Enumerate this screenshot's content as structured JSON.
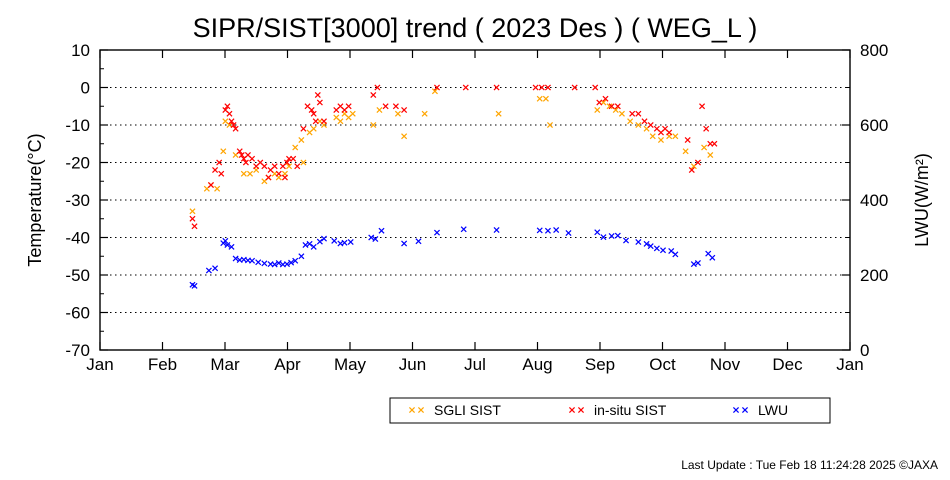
{
  "chart_data": {
    "type": "scatter",
    "title": "SIPR/SIST[3000] trend ( 2023 Des ) ( WEG_L )",
    "ylabel": "Temperature(°C)",
    "y2label": "LWU(W/m²)",
    "x_ticks": [
      "Jan",
      "Feb",
      "Mar",
      "Apr",
      "May",
      "Jun",
      "Jul",
      "Aug",
      "Sep",
      "Oct",
      "Nov",
      "Dec",
      "Jan"
    ],
    "ylim": [
      -70,
      10
    ],
    "y_ticks": [
      10,
      0,
      -10,
      -20,
      -30,
      -40,
      -50,
      -60,
      -70
    ],
    "y2lim": [
      0,
      800
    ],
    "y2_ticks": [
      800,
      600,
      400,
      200,
      0
    ],
    "grid": "horizontal dotted",
    "legend_position": "bottom",
    "series": [
      {
        "name": "SGLI SIST",
        "color": "#ffa500",
        "axis": "left",
        "points": [
          [
            "2023-02-15",
            -33
          ],
          [
            "2023-02-22",
            -27
          ],
          [
            "2023-02-24",
            -26
          ],
          [
            "2023-02-27",
            -27
          ],
          [
            "2023-03-02",
            -17
          ],
          [
            "2023-03-03",
            -9
          ],
          [
            "2023-03-05",
            -10
          ],
          [
            "2023-03-08",
            -18
          ],
          [
            "2023-03-12",
            -23
          ],
          [
            "2023-03-15",
            -23
          ],
          [
            "2023-03-18",
            -22
          ],
          [
            "2023-03-22",
            -25
          ],
          [
            "2023-03-24",
            -24
          ],
          [
            "2023-03-27",
            -23
          ],
          [
            "2023-03-29",
            -24
          ],
          [
            "2023-04-01",
            -23
          ],
          [
            "2023-04-03",
            -21
          ],
          [
            "2023-04-06",
            -16
          ],
          [
            "2023-04-09",
            -14
          ],
          [
            "2023-04-10",
            -20
          ],
          [
            "2023-04-13",
            -12
          ],
          [
            "2023-04-15",
            -11
          ],
          [
            "2023-04-18",
            -9
          ],
          [
            "2023-04-20",
            -10
          ],
          [
            "2023-04-26",
            -8
          ],
          [
            "2023-04-28",
            -9
          ],
          [
            "2023-04-30",
            -7
          ],
          [
            "2023-05-02",
            -8
          ],
          [
            "2023-05-04",
            -7
          ],
          [
            "2023-05-14",
            -10
          ],
          [
            "2023-05-17",
            -6
          ],
          [
            "2023-05-26",
            -7
          ],
          [
            "2023-05-29",
            -13
          ],
          [
            "2023-06-08",
            -7
          ],
          [
            "2023-06-13",
            -1
          ],
          [
            "2023-07-14",
            -7
          ],
          [
            "2023-08-03",
            -3
          ],
          [
            "2023-08-06",
            -3
          ],
          [
            "2023-08-08",
            -10
          ],
          [
            "2023-08-31",
            -6
          ],
          [
            "2023-09-03",
            -4
          ],
          [
            "2023-09-06",
            -5
          ],
          [
            "2023-09-09",
            -6
          ],
          [
            "2023-09-12",
            -7
          ],
          [
            "2023-09-16",
            -9
          ],
          [
            "2023-09-20",
            -10
          ],
          [
            "2023-09-24",
            -11
          ],
          [
            "2023-09-27",
            -13
          ],
          [
            "2023-10-01",
            -14
          ],
          [
            "2023-10-05",
            -13
          ],
          [
            "2023-10-08",
            -13
          ],
          [
            "2023-10-13",
            -17
          ],
          [
            "2023-10-17",
            -21
          ],
          [
            "2023-10-22",
            -16
          ],
          [
            "2023-10-25",
            -18
          ]
        ]
      },
      {
        "name": "in-situ SIST",
        "color": "#ff0000",
        "axis": "left",
        "points": [
          [
            "2023-02-15",
            -35
          ],
          [
            "2023-02-16",
            -37
          ],
          [
            "2023-02-24",
            -26
          ],
          [
            "2023-02-26",
            -22
          ],
          [
            "2023-02-28",
            -20
          ],
          [
            "2023-03-01",
            -23
          ],
          [
            "2023-03-03",
            -6
          ],
          [
            "2023-03-04",
            -5
          ],
          [
            "2023-03-05",
            -7
          ],
          [
            "2023-03-06",
            -9
          ],
          [
            "2023-03-07",
            -10
          ],
          [
            "2023-03-08",
            -11
          ],
          [
            "2023-03-10",
            -17
          ],
          [
            "2023-03-11",
            -18
          ],
          [
            "2023-03-12",
            -19
          ],
          [
            "2023-03-13",
            -20
          ],
          [
            "2023-03-14",
            -18
          ],
          [
            "2023-03-16",
            -19
          ],
          [
            "2023-03-18",
            -21
          ],
          [
            "2023-03-20",
            -20
          ],
          [
            "2023-03-22",
            -21
          ],
          [
            "2023-03-24",
            -24
          ],
          [
            "2023-03-25",
            -22
          ],
          [
            "2023-03-27",
            -21
          ],
          [
            "2023-03-29",
            -23
          ],
          [
            "2023-03-31",
            -21
          ],
          [
            "2023-04-01",
            -24
          ],
          [
            "2023-04-02",
            -20
          ],
          [
            "2023-04-03",
            -19
          ],
          [
            "2023-04-05",
            -19
          ],
          [
            "2023-04-07",
            -21
          ],
          [
            "2023-04-10",
            -11
          ],
          [
            "2023-04-12",
            -5
          ],
          [
            "2023-04-14",
            -6
          ],
          [
            "2023-04-15",
            -7
          ],
          [
            "2023-04-16",
            -9
          ],
          [
            "2023-04-17",
            -2
          ],
          [
            "2023-04-18",
            -4
          ],
          [
            "2023-04-20",
            -9
          ],
          [
            "2023-04-26",
            -6
          ],
          [
            "2023-04-28",
            -5
          ],
          [
            "2023-04-30",
            -6
          ],
          [
            "2023-05-02",
            -5
          ],
          [
            "2023-05-14",
            -2
          ],
          [
            "2023-05-16",
            0
          ],
          [
            "2023-05-20",
            -5
          ],
          [
            "2023-05-25",
            -5
          ],
          [
            "2023-05-29",
            -6
          ],
          [
            "2023-06-14",
            0
          ],
          [
            "2023-06-28",
            0
          ],
          [
            "2023-07-13",
            0
          ],
          [
            "2023-08-01",
            0
          ],
          [
            "2023-08-04",
            0
          ],
          [
            "2023-08-07",
            0
          ],
          [
            "2023-08-20",
            0
          ],
          [
            "2023-08-30",
            0
          ],
          [
            "2023-09-01",
            -4
          ],
          [
            "2023-09-04",
            -3
          ],
          [
            "2023-09-07",
            -5
          ],
          [
            "2023-09-10",
            -5
          ],
          [
            "2023-09-17",
            -7
          ],
          [
            "2023-09-20",
            -7
          ],
          [
            "2023-09-23",
            -9
          ],
          [
            "2023-09-26",
            -10
          ],
          [
            "2023-09-29",
            -11
          ],
          [
            "2023-10-01",
            -12
          ],
          [
            "2023-10-03",
            -11
          ],
          [
            "2023-10-05",
            -12
          ],
          [
            "2023-10-14",
            -14
          ],
          [
            "2023-10-16",
            -22
          ],
          [
            "2023-10-19",
            -20
          ],
          [
            "2023-10-21",
            -5
          ],
          [
            "2023-10-23",
            -11
          ],
          [
            "2023-10-25",
            -15
          ],
          [
            "2023-10-27",
            -15
          ]
        ]
      },
      {
        "name": "LWU",
        "color": "#0000ff",
        "axis": "right",
        "points": [
          [
            "2023-02-15",
            174
          ],
          [
            "2023-02-16",
            171
          ],
          [
            "2023-02-23",
            212
          ],
          [
            "2023-02-26",
            218
          ],
          [
            "2023-03-02",
            285
          ],
          [
            "2023-03-03",
            291
          ],
          [
            "2023-03-04",
            280
          ],
          [
            "2023-03-06",
            275
          ],
          [
            "2023-03-08",
            244
          ],
          [
            "2023-03-10",
            240
          ],
          [
            "2023-03-12",
            241
          ],
          [
            "2023-03-14",
            239
          ],
          [
            "2023-03-16",
            238
          ],
          [
            "2023-03-19",
            234
          ],
          [
            "2023-03-22",
            231
          ],
          [
            "2023-03-25",
            229
          ],
          [
            "2023-03-27",
            228
          ],
          [
            "2023-03-29",
            232
          ],
          [
            "2023-03-31",
            228
          ],
          [
            "2023-04-02",
            229
          ],
          [
            "2023-04-04",
            233
          ],
          [
            "2023-04-06",
            238
          ],
          [
            "2023-04-09",
            250
          ],
          [
            "2023-04-11",
            280
          ],
          [
            "2023-04-13",
            283
          ],
          [
            "2023-04-15",
            275
          ],
          [
            "2023-04-18",
            289
          ],
          [
            "2023-04-20",
            297
          ],
          [
            "2023-04-25",
            291
          ],
          [
            "2023-04-28",
            284
          ],
          [
            "2023-04-30",
            286
          ],
          [
            "2023-05-03",
            288
          ],
          [
            "2023-05-13",
            300
          ],
          [
            "2023-05-15",
            296
          ],
          [
            "2023-05-18",
            318
          ],
          [
            "2023-05-29",
            284
          ],
          [
            "2023-06-05",
            290
          ],
          [
            "2023-06-14",
            313
          ],
          [
            "2023-06-27",
            322
          ],
          [
            "2023-07-13",
            320
          ],
          [
            "2023-08-03",
            319
          ],
          [
            "2023-08-07",
            318
          ],
          [
            "2023-08-11",
            320
          ],
          [
            "2023-08-17",
            312
          ],
          [
            "2023-08-31",
            314
          ],
          [
            "2023-09-03",
            301
          ],
          [
            "2023-09-07",
            304
          ],
          [
            "2023-09-10",
            305
          ],
          [
            "2023-09-14",
            292
          ],
          [
            "2023-09-20",
            288
          ],
          [
            "2023-09-24",
            283
          ],
          [
            "2023-09-26",
            277
          ],
          [
            "2023-09-29",
            271
          ],
          [
            "2023-10-02",
            266
          ],
          [
            "2023-10-06",
            264
          ],
          [
            "2023-10-08",
            255
          ],
          [
            "2023-10-17",
            229
          ],
          [
            "2023-10-19",
            232
          ],
          [
            "2023-10-24",
            257
          ],
          [
            "2023-10-26",
            246
          ]
        ]
      }
    ]
  },
  "footer": "Last Update : Tue Feb 18 11:24:28 2025  ©JAXA"
}
